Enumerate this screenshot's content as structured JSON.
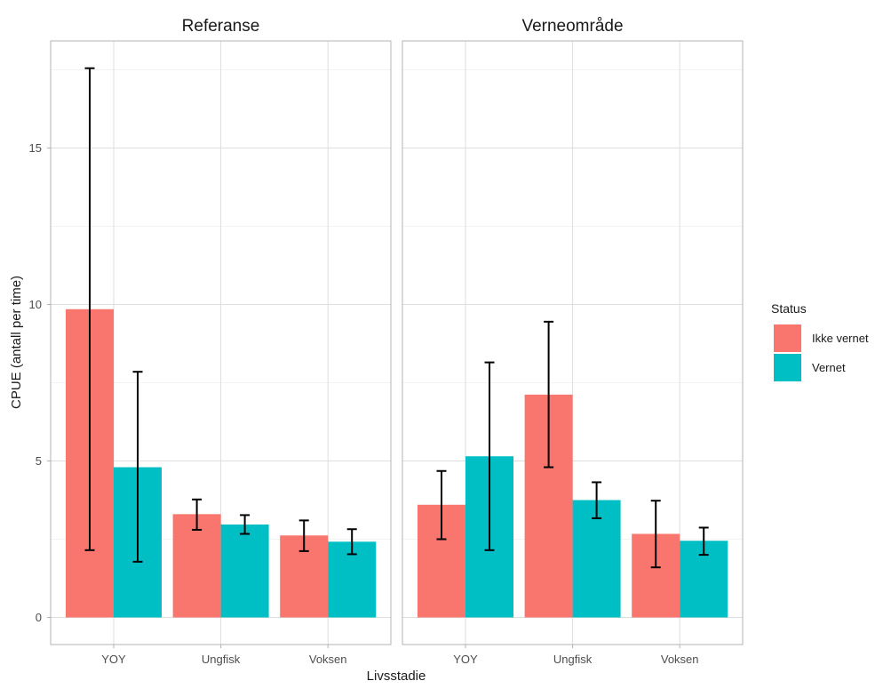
{
  "chart_data": {
    "type": "bar",
    "facets": [
      "Referanse",
      "Verneområde"
    ],
    "categories": [
      "YOY",
      "Ungfisk",
      "Voksen"
    ],
    "xlabel": "Livsstadie",
    "ylabel": "CPUE (antall per time)",
    "ylim": [
      -0.9,
      18.5
    ],
    "yticks": [
      0,
      5,
      10,
      15
    ],
    "grid": true,
    "legend": {
      "title": "Status",
      "placement": "right",
      "entries": [
        "Ikke vernet",
        "Vernet"
      ]
    },
    "colors": {
      "Ikke vernet": "#F8766D",
      "Vernet": "#00BFC4"
    },
    "panels": [
      {
        "facet": "Referanse",
        "series": [
          {
            "name": "Ikke vernet",
            "values": [
              9.85,
              3.3,
              2.62
            ],
            "error_low": [
              2.15,
              2.8,
              2.12
            ],
            "error_high": [
              17.55,
              3.77,
              3.1
            ]
          },
          {
            "name": "Vernet",
            "values": [
              4.8,
              2.97,
              2.42
            ],
            "error_low": [
              1.78,
              2.67,
              2.02
            ],
            "error_high": [
              7.85,
              3.27,
              2.82
            ]
          }
        ]
      },
      {
        "facet": "Verneområde",
        "series": [
          {
            "name": "Ikke vernet",
            "values": [
              3.6,
              7.12,
              2.67
            ],
            "error_low": [
              2.5,
              4.8,
              1.6
            ],
            "error_high": [
              4.68,
              9.45,
              3.73
            ]
          },
          {
            "name": "Vernet",
            "values": [
              5.15,
              3.75,
              2.45
            ],
            "error_low": [
              2.15,
              3.17,
              2.0
            ],
            "error_high": [
              8.15,
              4.32,
              2.87
            ]
          }
        ]
      }
    ]
  }
}
